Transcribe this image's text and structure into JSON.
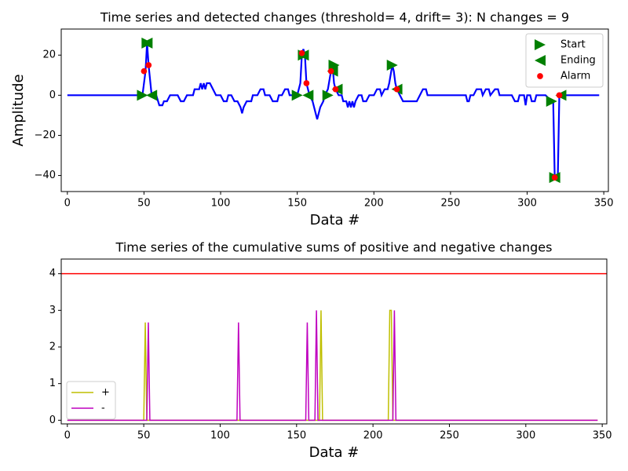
{
  "chart_data": [
    {
      "type": "line",
      "title": "Time series and detected changes (threshold= 4, drift= 3): N changes = 9",
      "xlabel": "Data #",
      "ylabel": "Amplitude",
      "xlim": [
        -4,
        353
      ],
      "ylim": [
        -48,
        33
      ],
      "xticks": [
        0,
        50,
        100,
        150,
        200,
        250,
        300,
        350
      ],
      "yticks": [
        {
          "value": -40,
          "label": "−40"
        },
        {
          "value": -20,
          "label": "−20"
        },
        0,
        20
      ],
      "legend": "upper right",
      "series": [
        {
          "style": "line",
          "color": "#0000ff",
          "x": [
            0,
            49,
            51,
            52,
            53,
            55,
            58,
            60,
            62,
            63,
            65,
            67,
            72,
            74,
            76,
            78,
            82,
            83,
            86,
            87,
            88,
            89,
            90,
            91,
            93,
            95,
            97,
            100,
            102,
            104,
            105,
            107,
            109,
            111,
            113,
            114,
            115,
            117,
            120,
            121,
            124,
            126,
            128,
            129,
            132,
            134,
            137,
            138,
            140,
            142,
            144,
            145,
            150,
            152,
            153,
            154,
            155,
            156,
            158,
            160,
            162,
            163,
            165,
            167,
            168,
            170,
            172,
            173,
            174,
            175,
            177,
            179,
            180,
            182,
            183,
            184,
            185,
            186,
            187,
            188,
            190,
            192,
            193,
            195,
            197,
            200,
            202,
            204,
            205,
            207,
            209,
            210,
            212,
            213,
            214,
            215,
            217,
            219,
            228,
            230,
            232,
            234,
            235,
            260,
            261,
            262,
            263,
            265,
            267,
            270,
            271,
            273,
            275,
            276,
            279,
            281,
            282,
            290,
            292,
            294,
            295,
            298,
            299,
            300,
            302,
            303,
            305,
            306,
            312,
            316,
            317,
            318,
            320,
            321,
            347
          ],
          "values": [
            0,
            0,
            12,
            26,
            15,
            0,
            0,
            -5,
            -5,
            -3,
            -3,
            0,
            0,
            -3,
            -3,
            0,
            0,
            3,
            3,
            6,
            3,
            6,
            3,
            6,
            6,
            3,
            0,
            0,
            -3,
            -3,
            0,
            0,
            -3,
            -3,
            -6,
            -9,
            -6,
            -3,
            -3,
            0,
            0,
            3,
            3,
            0,
            0,
            -3,
            -3,
            0,
            0,
            3,
            3,
            0,
            0,
            6,
            20,
            23,
            20,
            6,
            0,
            -3,
            -9,
            -12,
            -6,
            -3,
            0,
            3,
            12,
            15,
            6,
            3,
            0,
            0,
            -3,
            -3,
            -6,
            -3,
            -6,
            -3,
            -6,
            -3,
            0,
            0,
            -3,
            -3,
            0,
            0,
            3,
            3,
            0,
            3,
            3,
            6,
            15,
            12,
            6,
            3,
            0,
            -3,
            -3,
            0,
            3,
            3,
            0,
            0,
            -3,
            -3,
            0,
            0,
            3,
            3,
            0,
            3,
            3,
            0,
            3,
            3,
            0,
            0,
            -3,
            -3,
            0,
            0,
            -5,
            0,
            0,
            -3,
            -3,
            0,
            0,
            -3,
            -3,
            -41,
            -41,
            0,
            0
          ]
        },
        {
          "name": "Start",
          "style": "right",
          "color": "#008000",
          "x": [
            49,
            52,
            150,
            154,
            170,
            174,
            212,
            316,
            318
          ],
          "values": [
            0,
            26,
            0,
            20,
            0,
            15,
            15,
            -3,
            -41
          ]
        },
        {
          "name": "Ending",
          "style": "left",
          "color": "#008000",
          "x": [
            52,
            55,
            154,
            157,
            173,
            176,
            215,
            318,
            322
          ],
          "values": [
            26,
            0,
            20,
            0,
            12,
            3,
            3,
            -41,
            0
          ]
        },
        {
          "name": "Alarm",
          "style": "dot",
          "color": "#ff0000",
          "x": [
            50,
            53,
            153,
            156,
            172,
            175,
            215,
            318,
            321
          ],
          "values": [
            12,
            15,
            21,
            6,
            12,
            3,
            3,
            -41,
            0
          ]
        }
      ]
    },
    {
      "type": "line",
      "title": "Time series of the cumulative sums of positive and negative changes",
      "xlabel": "Data #",
      "xlim": [
        -4,
        353
      ],
      "ylim": [
        -0.1,
        4.4
      ],
      "xticks": [
        0,
        50,
        100,
        150,
        200,
        250,
        300,
        350
      ],
      "yticks": [
        0,
        1,
        2,
        3,
        4
      ],
      "legend": "lower left",
      "threshold": {
        "value": 4,
        "color": "#ff0000"
      },
      "series": [
        {
          "name": "+",
          "style": "line",
          "color": "#bfbf00",
          "x": [
            0,
            50,
            51,
            52,
            165,
            166,
            167,
            210,
            211,
            212,
            213,
            347
          ],
          "values": [
            0,
            0,
            2.67,
            0,
            0,
            3,
            0,
            0,
            3,
            3,
            0,
            0
          ]
        },
        {
          "name": "-",
          "style": "line",
          "color": "#bf00bf",
          "x": [
            0,
            52,
            53,
            54,
            111,
            112,
            113,
            156,
            157,
            158,
            162,
            163,
            164,
            213,
            214,
            215,
            347
          ],
          "values": [
            0,
            0,
            2.67,
            0,
            0,
            2.67,
            0,
            0,
            2.67,
            0,
            0,
            3,
            0,
            0,
            3,
            0,
            0
          ]
        }
      ]
    }
  ]
}
